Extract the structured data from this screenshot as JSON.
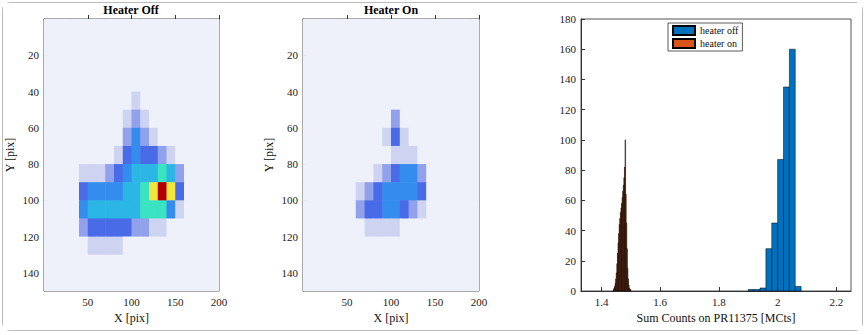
{
  "chart_data": [
    {
      "type": "heatmap",
      "title": "Heater Off",
      "x_label": "X [pix]",
      "y_label": "Y [pix]",
      "xlim": [
        0,
        200
      ],
      "ylim": [
        0,
        150
      ],
      "xticks": [
        50,
        100,
        150,
        200
      ],
      "yticks": [
        20,
        40,
        60,
        80,
        100,
        120,
        140
      ],
      "x_bins": [
        0,
        10,
        20,
        30,
        40,
        50,
        60,
        70,
        80,
        90,
        100,
        110,
        120,
        130,
        140,
        150,
        160,
        170,
        180,
        190,
        200
      ],
      "y_bins": [
        0,
        10,
        20,
        30,
        40,
        50,
        60,
        70,
        80,
        90,
        100,
        110,
        120,
        130,
        140,
        150
      ],
      "clim": [
        0,
        10
      ],
      "cells": [
        [
          0,
          0,
          0,
          0,
          0,
          0,
          0,
          0,
          0,
          0,
          0,
          0,
          0,
          0,
          0,
          0,
          0,
          0,
          0,
          0
        ],
        [
          0,
          0,
          0,
          0,
          0,
          0,
          0,
          0,
          0,
          0,
          0,
          0,
          0,
          0,
          0,
          0,
          0,
          0,
          0,
          0
        ],
        [
          0,
          0,
          0,
          0,
          0,
          0,
          0,
          0,
          0,
          0,
          0,
          0,
          0,
          0,
          0,
          0,
          0,
          0,
          0,
          0
        ],
        [
          0,
          0,
          0,
          0,
          0,
          0,
          0,
          0,
          0,
          0,
          0,
          0,
          0,
          0,
          0,
          0,
          0,
          0,
          0,
          0
        ],
        [
          0,
          0,
          0,
          0,
          0,
          0,
          0,
          0,
          0,
          0,
          1,
          0,
          0,
          0,
          0,
          0,
          0,
          0,
          0,
          0
        ],
        [
          0,
          0,
          0,
          0,
          0,
          0,
          0,
          0,
          0,
          1,
          2,
          1,
          0,
          0,
          0,
          0,
          0,
          0,
          0,
          0
        ],
        [
          0,
          0,
          0,
          0,
          0,
          0,
          0,
          0,
          0,
          2,
          4,
          2,
          1,
          0,
          0,
          0,
          0,
          0,
          0,
          0
        ],
        [
          0,
          0,
          0,
          0,
          0,
          0,
          0,
          0,
          1,
          3,
          4,
          3,
          3,
          2,
          1,
          0,
          0,
          0,
          0,
          0
        ],
        [
          0,
          0,
          0,
          0,
          1,
          1,
          1,
          2,
          3,
          4,
          5,
          5,
          5,
          6,
          5,
          2,
          0,
          0,
          0,
          0
        ],
        [
          0,
          0,
          0,
          0,
          3,
          4,
          4,
          4,
          4,
          5,
          5,
          6,
          8,
          10,
          8,
          3,
          0,
          0,
          0,
          0
        ],
        [
          0,
          0,
          0,
          0,
          4,
          5,
          5,
          5,
          5,
          5,
          5,
          6,
          6,
          6,
          4,
          1,
          0,
          0,
          0,
          0
        ],
        [
          0,
          0,
          0,
          0,
          2,
          3,
          3,
          3,
          3,
          3,
          2,
          2,
          1,
          1,
          0,
          0,
          0,
          0,
          0,
          0
        ],
        [
          0,
          0,
          0,
          0,
          0,
          1,
          1,
          1,
          1,
          0,
          0,
          0,
          0,
          0,
          0,
          0,
          0,
          0,
          0,
          0
        ],
        [
          0,
          0,
          0,
          0,
          0,
          0,
          0,
          0,
          0,
          0,
          0,
          0,
          0,
          0,
          0,
          0,
          0,
          0,
          0,
          0
        ],
        [
          0,
          0,
          0,
          0,
          0,
          0,
          0,
          0,
          0,
          0,
          0,
          0,
          0,
          0,
          0,
          0,
          0,
          0,
          0,
          0
        ]
      ]
    },
    {
      "type": "heatmap",
      "title": "Heater On",
      "x_label": "X [pix]",
      "y_label": "Y [pix]",
      "xlim": [
        0,
        200
      ],
      "ylim": [
        0,
        150
      ],
      "xticks": [
        50,
        100,
        150,
        200
      ],
      "yticks": [
        20,
        40,
        60,
        80,
        100,
        120,
        140
      ],
      "x_bins": [
        0,
        10,
        20,
        30,
        40,
        50,
        60,
        70,
        80,
        90,
        100,
        110,
        120,
        130,
        140,
        150,
        160,
        170,
        180,
        190,
        200
      ],
      "y_bins": [
        0,
        10,
        20,
        30,
        40,
        50,
        60,
        70,
        80,
        90,
        100,
        110,
        120,
        130,
        140,
        150
      ],
      "clim": [
        0,
        10
      ],
      "cells": [
        [
          0,
          0,
          0,
          0,
          0,
          0,
          0,
          0,
          0,
          0,
          0,
          0,
          0,
          0,
          0,
          0,
          0,
          0,
          0,
          0
        ],
        [
          0,
          0,
          0,
          0,
          0,
          0,
          0,
          0,
          0,
          0,
          0,
          0,
          0,
          0,
          0,
          0,
          0,
          0,
          0,
          0
        ],
        [
          0,
          0,
          0,
          0,
          0,
          0,
          0,
          0,
          0,
          0,
          0,
          0,
          0,
          0,
          0,
          0,
          0,
          0,
          0,
          0
        ],
        [
          0,
          0,
          0,
          0,
          0,
          0,
          0,
          0,
          0,
          0,
          0,
          0,
          0,
          0,
          0,
          0,
          0,
          0,
          0,
          0
        ],
        [
          0,
          0,
          0,
          0,
          0,
          0,
          0,
          0,
          0,
          0,
          0,
          0,
          0,
          0,
          0,
          0,
          0,
          0,
          0,
          0
        ],
        [
          0,
          0,
          0,
          0,
          0,
          0,
          0,
          0,
          0,
          0,
          2,
          0,
          0,
          0,
          0,
          0,
          0,
          0,
          0,
          0
        ],
        [
          0,
          0,
          0,
          0,
          0,
          0,
          0,
          0,
          0,
          1,
          3,
          1,
          0,
          0,
          0,
          0,
          0,
          0,
          0,
          0
        ],
        [
          0,
          0,
          0,
          0,
          0,
          0,
          0,
          0,
          0,
          0,
          1,
          1,
          1,
          0,
          0,
          0,
          0,
          0,
          0,
          0
        ],
        [
          0,
          0,
          0,
          0,
          0,
          0,
          0,
          0,
          1,
          2,
          3,
          4,
          4,
          2,
          0,
          0,
          0,
          0,
          0,
          0
        ],
        [
          0,
          0,
          0,
          0,
          0,
          0,
          1,
          2,
          3,
          4,
          4,
          4,
          4,
          3,
          0,
          0,
          0,
          0,
          0,
          0
        ],
        [
          0,
          0,
          0,
          0,
          0,
          0,
          2,
          3,
          3,
          4,
          4,
          3,
          2,
          1,
          0,
          0,
          0,
          0,
          0,
          0
        ],
        [
          0,
          0,
          0,
          0,
          0,
          0,
          0,
          1,
          1,
          1,
          1,
          0,
          0,
          0,
          0,
          0,
          0,
          0,
          0,
          0
        ],
        [
          0,
          0,
          0,
          0,
          0,
          0,
          0,
          0,
          0,
          0,
          0,
          0,
          0,
          0,
          0,
          0,
          0,
          0,
          0,
          0
        ],
        [
          0,
          0,
          0,
          0,
          0,
          0,
          0,
          0,
          0,
          0,
          0,
          0,
          0,
          0,
          0,
          0,
          0,
          0,
          0,
          0
        ],
        [
          0,
          0,
          0,
          0,
          0,
          0,
          0,
          0,
          0,
          0,
          0,
          0,
          0,
          0,
          0,
          0,
          0,
          0,
          0,
          0
        ]
      ]
    },
    {
      "type": "histogram",
      "x_label": "Sum Counts on PR11375 [MCts]",
      "xlim": [
        1.33,
        2.25
      ],
      "ylim": [
        0,
        180
      ],
      "xticks": [
        1.4,
        1.6,
        1.8,
        2,
        2.2
      ],
      "yticks": [
        0,
        20,
        40,
        60,
        80,
        100,
        120,
        140,
        160,
        180
      ],
      "legend": "upper center",
      "series": [
        {
          "name": "heater off",
          "color": "#0072bd",
          "bins": [
            1.9,
            1.92,
            1.94,
            1.96,
            1.98,
            2,
            2.02,
            2.04,
            2.06,
            2.08
          ],
          "counts": [
            1,
            1,
            2,
            28,
            45,
            87,
            135,
            160,
            3
          ]
        },
        {
          "name": "heater on",
          "color": "#d95319",
          "bins": [
            1.44,
            1.442,
            1.444,
            1.446,
            1.448,
            1.45,
            1.452,
            1.454,
            1.456,
            1.458,
            1.46,
            1.462,
            1.464,
            1.466,
            1.468,
            1.47,
            1.472,
            1.474,
            1.476,
            1.478,
            1.48,
            1.482,
            1.484,
            1.486,
            1.488,
            1.49,
            1.492,
            1.494,
            1.496,
            1.498,
            1.5
          ],
          "counts": [
            1,
            2,
            3,
            5,
            8,
            12,
            18,
            25,
            32,
            38,
            44,
            48,
            52,
            55,
            58,
            62,
            66,
            70,
            75,
            82,
            100,
            64,
            45,
            28,
            15,
            8,
            4,
            2,
            1,
            1
          ]
        }
      ]
    }
  ]
}
